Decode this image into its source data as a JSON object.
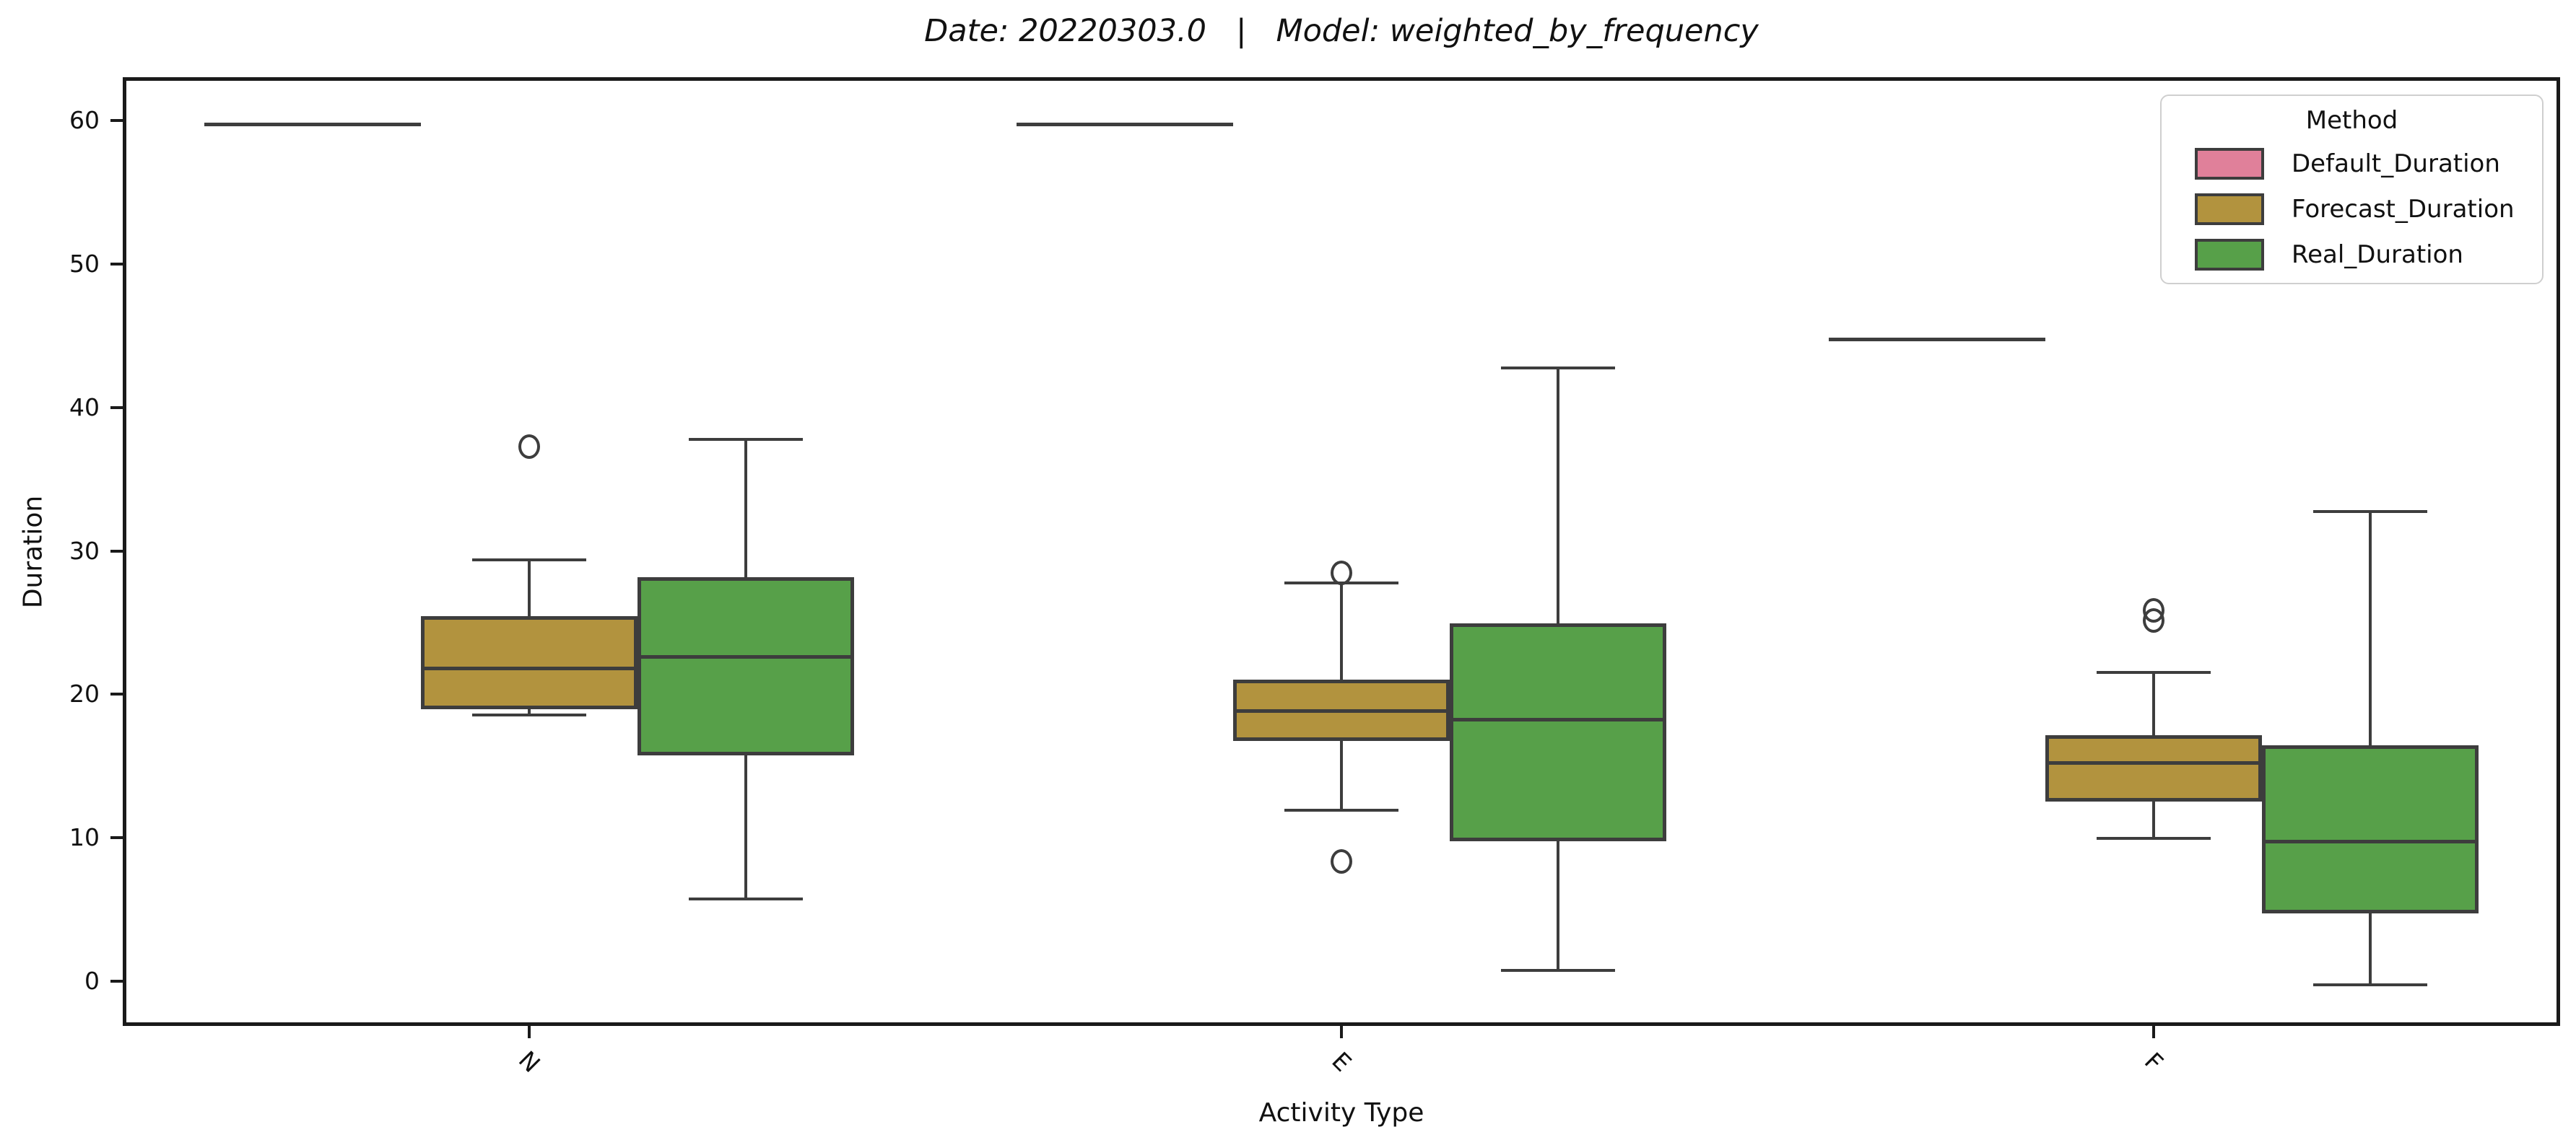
{
  "chart_data": {
    "type": "grouped_boxplot",
    "title": "Date: 20220303.0   |   Model: weighted_by_frequency",
    "xlabel": "Activity Type",
    "ylabel": "Duration",
    "categories": [
      "N",
      "E",
      "F"
    ],
    "y_ticks": [
      0,
      10,
      20,
      30,
      40,
      50,
      60
    ],
    "ylim": [
      -3.1,
      63.0
    ],
    "grid": false,
    "legend_title": "Method",
    "legend_position": "upper right",
    "edge_color": "#3d3d3d",
    "spine_color": "#1a1a1a",
    "series": [
      {
        "name": "Default_Duration",
        "color": "#e0809a",
        "boxes": [
          {
            "collapsed": true,
            "value": 60
          },
          {
            "collapsed": true,
            "value": 60
          },
          {
            "collapsed": true,
            "value": 45
          }
        ]
      },
      {
        "name": "Forecast_Duration",
        "color": "#b2933e",
        "boxes": [
          {
            "whislo": 18.8,
            "q1": 19.2,
            "med": 22.1,
            "q3": 25.7,
            "whishi": 29.6,
            "outliers": [
              37.5
            ]
          },
          {
            "whislo": 12.2,
            "q1": 17.0,
            "med": 19.1,
            "q3": 21.3,
            "whishi": 28.0,
            "outliers": [
              28.7,
              8.6
            ]
          },
          {
            "whislo": 10.2,
            "q1": 12.8,
            "med": 15.5,
            "q3": 17.4,
            "whishi": 21.8,
            "outliers": [
              26.1,
              25.4
            ]
          }
        ]
      },
      {
        "name": "Real_Duration",
        "color": "#57a049",
        "boxes": [
          {
            "whislo": 6.0,
            "q1": 16.0,
            "med": 22.9,
            "q3": 28.4,
            "whishi": 38.0,
            "outliers": []
          },
          {
            "whislo": 1.0,
            "q1": 10.0,
            "med": 18.5,
            "q3": 25.2,
            "whishi": 43.0,
            "outliers": []
          },
          {
            "whislo": 0.0,
            "q1": 5.0,
            "med": 10.0,
            "q3": 16.7,
            "whishi": 33.0,
            "outliers": []
          }
        ]
      }
    ]
  }
}
